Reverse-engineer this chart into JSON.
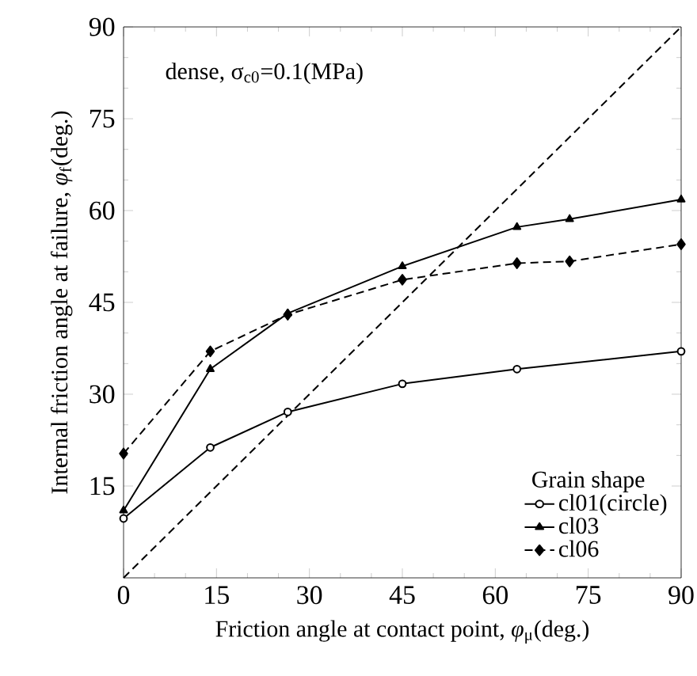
{
  "chart_data": {
    "type": "line",
    "xlabel": "Friction angle at contact point, *φ*$_{μ}$(deg.)",
    "ylabel": "Internal friction angle at failure, *φ*$_{f}$(deg.)",
    "annotations": [
      "dense, σ$_{c0}$=0.1(MPa)"
    ],
    "legend_title": "Grain shape",
    "legend": "bottom right",
    "xlim": [
      0,
      90
    ],
    "xticks": [
      0,
      15,
      30,
      45,
      60,
      75,
      90
    ],
    "ylim": [
      0,
      90
    ],
    "yticks": [
      15,
      30,
      45,
      60,
      75,
      90
    ],
    "series": [
      {
        "name": "cl01(circle)",
        "color": "#000000",
        "marker": "circle",
        "line_style": "solid",
        "x": [
          0,
          14,
          26.5,
          45,
          63.5,
          90
        ],
        "values": [
          9.7,
          21.3,
          27.1,
          31.7,
          34.1,
          37
        ]
      },
      {
        "name": "cl03",
        "color": "#000000",
        "marker": "triangle",
        "line_style": "solid",
        "x": [
          0,
          14,
          26.5,
          45,
          63.5,
          72,
          90
        ],
        "values": [
          11,
          34.1,
          43.2,
          50.9,
          57.3,
          58.6,
          61.8
        ]
      },
      {
        "name": "cl06",
        "color": "#000000",
        "marker": "diamond",
        "line_style": "dashed",
        "x": [
          0,
          14,
          26.5,
          45,
          63.5,
          72,
          90
        ],
        "values": [
          20.3,
          37,
          43,
          48.7,
          51.4,
          51.7,
          54.5
        ]
      },
      {
        "color": "#000000",
        "marker": "none",
        "line_style": "dashed",
        "x": [
          0,
          90
        ],
        "values": [
          0,
          90
        ]
      }
    ]
  }
}
